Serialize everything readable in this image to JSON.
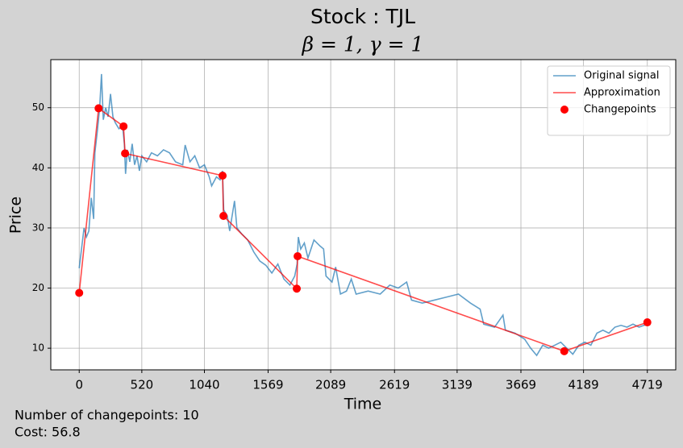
{
  "chart_data": {
    "type": "line",
    "title": "Stock : TJL",
    "subtitle": "β = 1, γ = 1",
    "x_label": "Time",
    "y_label": "Price",
    "annotations": [
      "Number of changepoints: 10",
      "Cost: 56.8"
    ],
    "xlim": [
      -236,
      4955
    ],
    "ylim": [
      6.4,
      58.0
    ],
    "xticks": [
      0,
      520,
      1040,
      1569,
      2089,
      2619,
      3139,
      3669,
      4189,
      4719
    ],
    "yticks": [
      10,
      20,
      30,
      40,
      50
    ],
    "grid": true,
    "legend": "upper right",
    "series": [
      {
        "name": "Original signal",
        "type": "line",
        "color": "#1f77b4",
        "x": [
          0,
          40,
          60,
          80,
          100,
          120,
          130,
          150,
          170,
          185,
          200,
          220,
          240,
          260,
          280,
          300,
          330,
          360,
          375,
          385,
          400,
          420,
          440,
          460,
          480,
          500,
          520,
          560,
          600,
          650,
          700,
          750,
          800,
          860,
          880,
          920,
          960,
          1000,
          1040,
          1080,
          1100,
          1140,
          1170,
          1190,
          1200,
          1230,
          1250,
          1290,
          1310,
          1350,
          1400,
          1450,
          1500,
          1550,
          1600,
          1650,
          1700,
          1750,
          1790,
          1810,
          1820,
          1840,
          1870,
          1900,
          1950,
          2000,
          2030,
          2050,
          2100,
          2130,
          2170,
          2220,
          2260,
          2300,
          2400,
          2500,
          2580,
          2650,
          2720,
          2760,
          2850,
          2950,
          3050,
          3150,
          3250,
          3330,
          3360,
          3450,
          3520,
          3540,
          3620,
          3700,
          3750,
          3800,
          3850,
          3900,
          3950,
          4000,
          4050,
          4100,
          4150,
          4200,
          4250,
          4300,
          4350,
          4400,
          4450,
          4500,
          4550,
          4600,
          4650,
          4719
        ],
        "values": [
          23.3,
          30,
          28.5,
          29.5,
          35,
          31.5,
          42.5,
          46,
          50,
          55.6,
          48,
          50,
          48.5,
          52.3,
          48.5,
          47.5,
          46.5,
          47,
          44,
          39,
          43,
          41,
          44,
          40.5,
          42,
          39.5,
          42,
          41,
          42.5,
          42,
          43,
          42.5,
          41,
          40.5,
          43.8,
          41,
          42,
          40,
          40.5,
          38.5,
          37,
          38.5,
          38,
          39.5,
          33,
          32,
          29.5,
          34.5,
          30,
          29,
          28,
          26,
          24.5,
          23.8,
          22.5,
          24,
          21.5,
          20.5,
          22,
          24,
          28.5,
          26.5,
          27.5,
          25,
          28,
          27,
          26.5,
          22,
          21,
          23.5,
          19,
          19.5,
          21.5,
          19,
          19.5,
          19,
          20.5,
          20,
          21,
          18,
          17.5,
          18,
          18.5,
          19,
          17.5,
          16.5,
          14,
          13.5,
          15.5,
          13,
          12.5,
          11.5,
          10,
          8.8,
          10.5,
          10,
          10.5,
          11,
          10,
          9,
          10.5,
          11,
          10.5,
          12.5,
          13,
          12.5,
          13.5,
          13.8,
          13.5,
          14,
          13.5,
          14
        ]
      },
      {
        "name": "Approximation",
        "type": "line",
        "color": "#ff0000",
        "x": [
          0,
          161,
          368,
          381,
          1191,
          1198,
          1807,
          1814,
          4029,
          4719
        ],
        "values": [
          19.2,
          49.9,
          46.9,
          42.4,
          38.7,
          32.0,
          19.9,
          25.3,
          9.5,
          14.3
        ]
      },
      {
        "name": "Changepoints",
        "type": "scatter",
        "color": "#ff0000",
        "x": [
          0,
          161,
          368,
          381,
          1191,
          1198,
          1807,
          1814,
          4029,
          4719
        ],
        "values": [
          19.2,
          49.9,
          46.9,
          42.4,
          38.7,
          32.0,
          19.9,
          25.3,
          9.5,
          14.3
        ]
      }
    ]
  }
}
